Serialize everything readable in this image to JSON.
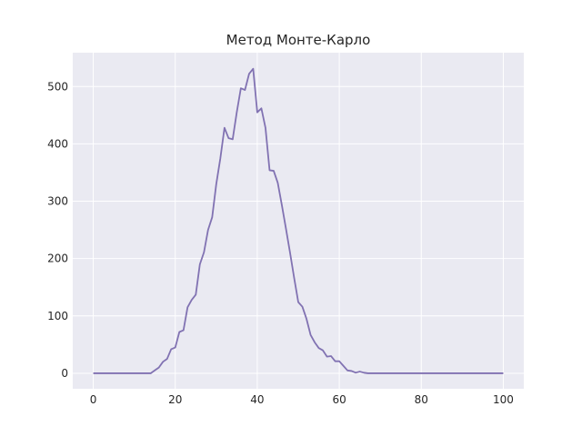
{
  "chart_data": {
    "type": "line",
    "title": "Метод Монте-Карло",
    "xlabel": "",
    "ylabel": "",
    "xlim": [
      -5,
      105
    ],
    "ylim": [
      -27,
      559
    ],
    "x_ticks": [
      0,
      20,
      40,
      60,
      80,
      100
    ],
    "y_ticks": [
      0,
      100,
      200,
      300,
      400,
      500
    ],
    "grid": true,
    "legend": "none",
    "background_color": "#eaeaf2",
    "grid_color": "#ffffff",
    "line_color": "#8172b2",
    "series": [
      {
        "name": "",
        "x": [
          0,
          1,
          2,
          3,
          4,
          5,
          6,
          7,
          8,
          9,
          10,
          11,
          12,
          13,
          14,
          15,
          16,
          17,
          18,
          19,
          20,
          21,
          22,
          23,
          24,
          25,
          26,
          27,
          28,
          29,
          30,
          31,
          32,
          33,
          34,
          35,
          36,
          37,
          38,
          39,
          40,
          41,
          42,
          43,
          44,
          45,
          46,
          47,
          48,
          49,
          50,
          51,
          52,
          53,
          54,
          55,
          56,
          57,
          58,
          59,
          60,
          61,
          62,
          63,
          64,
          65,
          66,
          67,
          68,
          69,
          70,
          71,
          72,
          73,
          74,
          75,
          76,
          77,
          78,
          79,
          80,
          81,
          82,
          83,
          84,
          85,
          86,
          87,
          88,
          89,
          90,
          91,
          92,
          93,
          94,
          95,
          96,
          97,
          98,
          99,
          100
        ],
        "values": [
          0,
          0,
          0,
          0,
          0,
          0,
          0,
          0,
          0,
          0,
          0,
          0,
          0,
          0,
          0,
          5,
          10,
          20,
          25,
          42,
          45,
          72,
          75,
          115,
          128,
          137,
          190,
          211,
          250,
          272,
          330,
          375,
          428,
          410,
          408,
          455,
          497,
          494,
          522,
          531,
          455,
          462,
          428,
          354,
          353,
          332,
          293,
          252,
          210,
          166,
          124,
          116,
          95,
          67,
          54,
          44,
          40,
          29,
          30,
          21,
          21,
          13,
          5,
          4,
          1,
          3,
          1,
          0,
          0,
          0,
          0,
          0,
          0,
          0,
          0,
          0,
          0,
          0,
          0,
          0,
          0,
          0,
          0,
          0,
          0,
          0,
          0,
          0,
          0,
          0,
          0,
          0,
          0,
          0,
          0,
          0,
          0,
          0,
          0,
          0,
          0
        ]
      }
    ]
  }
}
